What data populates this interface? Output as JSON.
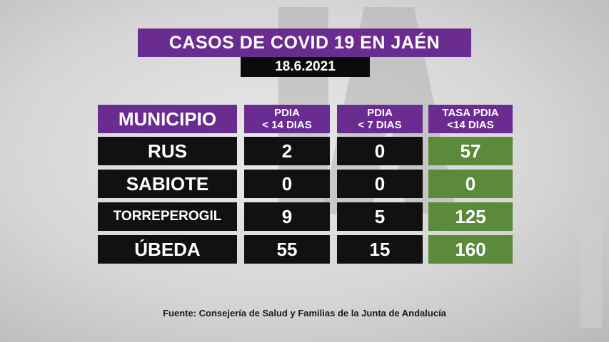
{
  "title": "CASOS DE COVID 19 EN JAÉN",
  "date": "18.6.2021",
  "headers": {
    "municipio": "MUNICIPIO",
    "pdia14_line1": "PDIA",
    "pdia14_line2": "< 14 DIAS",
    "pdia7_line1": "PDIA",
    "pdia7_line2": "< 7 DIAS",
    "tasa_line1": "TASA PDIA",
    "tasa_line2": "<14 DIAS"
  },
  "rows": [
    {
      "municipio": "RUS",
      "pdia14": "2",
      "pdia7": "0",
      "tasa": "57"
    },
    {
      "municipio": "SABIOTE",
      "pdia14": "0",
      "pdia7": "0",
      "tasa": "0"
    },
    {
      "municipio": "TORREPEROGIL",
      "pdia14": "9",
      "pdia7": "5",
      "tasa": "125"
    },
    {
      "municipio": "ÚBEDA",
      "pdia14": "55",
      "pdia7": "15",
      "tasa": "160"
    }
  ],
  "source": "Fuente:  Consejería de Salud y Familias de la Junta de Andalucía",
  "colors": {
    "purple": "#6a2c91",
    "black": "#111111",
    "green": "#5b8a3a"
  }
}
